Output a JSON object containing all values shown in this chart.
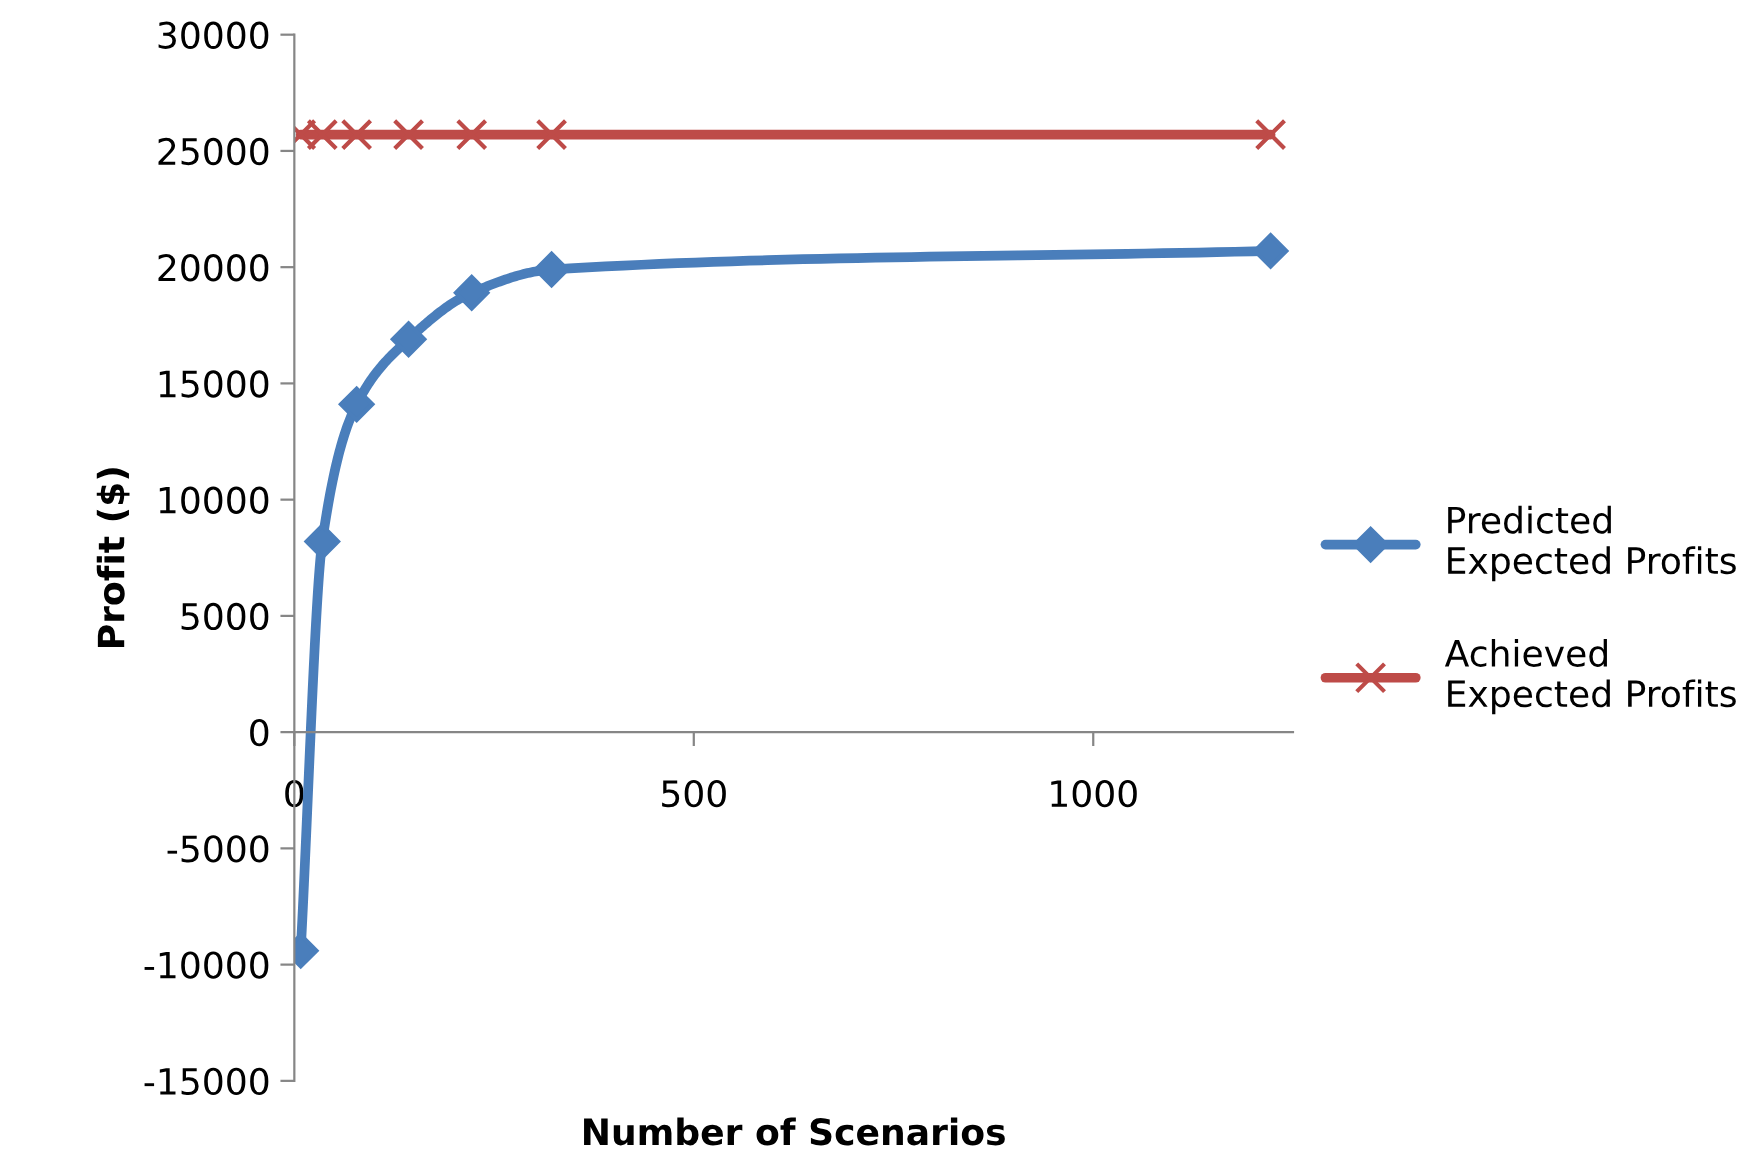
{
  "chart_data": {
    "type": "line",
    "xlabel": "Number of Scenarios",
    "ylabel": "Profit ($)",
    "xlim": [
      0,
      1250
    ],
    "xticks": [
      0,
      500,
      1000
    ],
    "ylim": [
      -15000,
      30000
    ],
    "yticks": [
      -15000,
      -10000,
      -5000,
      0,
      5000,
      10000,
      15000,
      20000,
      25000,
      30000
    ],
    "grid": false,
    "legend": "right",
    "line_style": "solid",
    "series": [
      {
        "name": "Predicted Expected Profits",
        "color": "#4a7ebb",
        "marker": "diamond",
        "x": [
          8,
          35,
          78,
          143,
          222,
          322,
          1222
        ],
        "values": [
          -9400,
          8200,
          14100,
          16900,
          18900,
          19900,
          20700
        ]
      },
      {
        "name": "Achieved Expected Profits",
        "color": "#be4b48",
        "marker": "cross",
        "x": [
          8,
          35,
          78,
          143,
          222,
          322,
          1222
        ],
        "values": [
          25700,
          25700,
          25700,
          25700,
          25700,
          25700,
          25700
        ]
      }
    ]
  }
}
